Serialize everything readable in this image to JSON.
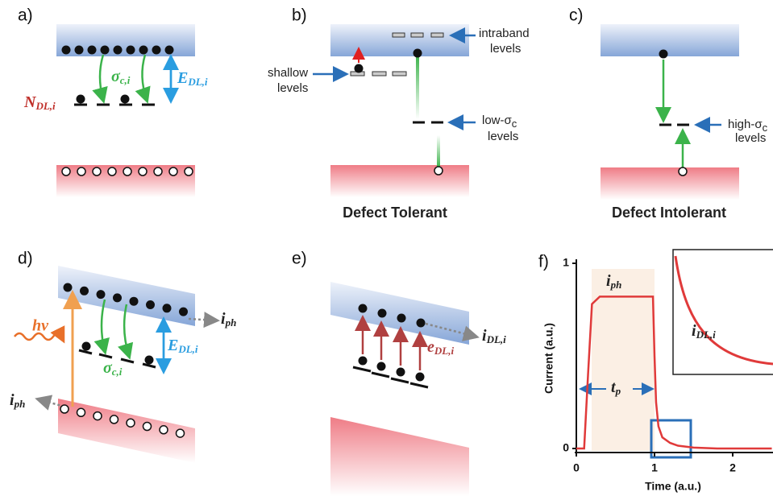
{
  "panels": {
    "a": {
      "label": "a)",
      "sigma": {
        "main": "σ",
        "sub": "c,i"
      },
      "energy": {
        "main": "E",
        "sub": "DL,i"
      },
      "density": {
        "main": "N",
        "sub": "DL,i"
      }
    },
    "b": {
      "label": "b)",
      "intraband": [
        "intraband",
        "levels"
      ],
      "shallow": [
        "shallow",
        "levels"
      ],
      "low": {
        "main": "low-σ",
        "sub": "c",
        "line2": "levels"
      },
      "caption": "Defect Tolerant"
    },
    "c": {
      "label": "c)",
      "high": {
        "main": "high-σ",
        "sub": "c",
        "line2": "levels"
      },
      "caption": "Defect Intolerant"
    },
    "d": {
      "label": "d)",
      "photon": "hν",
      "current_right": {
        "main": "i",
        "sub": "ph"
      },
      "current_left": {
        "main": "i",
        "sub": "ph"
      },
      "energy": {
        "main": "E",
        "sub": "DL,i"
      },
      "sigma": {
        "main": "σ",
        "sub": "c,i"
      }
    },
    "e": {
      "label": "e)",
      "current": {
        "main": "i",
        "sub": "DL,i"
      },
      "emission": {
        "main": "e",
        "sub": "DL,i"
      }
    },
    "f": {
      "label": "f)"
    }
  },
  "chart_data": {
    "type": "line",
    "xlabel": "Time (a.u.)",
    "ylabel": "Current (a.u.)",
    "x": [
      0,
      0.1,
      0.15,
      0.2,
      0.3,
      0.5,
      0.8,
      0.98,
      1.0,
      1.02,
      1.05,
      1.1,
      1.2,
      1.3,
      1.5,
      1.8,
      2.2,
      2.5
    ],
    "series": [
      {
        "color": "#e03a3a",
        "values": [
          0,
          0,
          0.4,
          0.78,
          0.82,
          0.82,
          0.82,
          0.82,
          0.5,
          0.25,
          0.12,
          0.06,
          0.03,
          0.015,
          0.005,
          0,
          0,
          0
        ]
      }
    ],
    "xlim": [
      0,
      2.5
    ],
    "ylim": [
      0,
      1
    ],
    "xticks": [
      0,
      1,
      2
    ],
    "yticks": [
      0,
      1
    ],
    "annotations": {
      "photo": {
        "main": "i",
        "sub": "ph"
      },
      "pulse": {
        "main": "t",
        "sub": "p"
      },
      "inset": {
        "main": "i",
        "sub": "DL,i"
      }
    }
  }
}
